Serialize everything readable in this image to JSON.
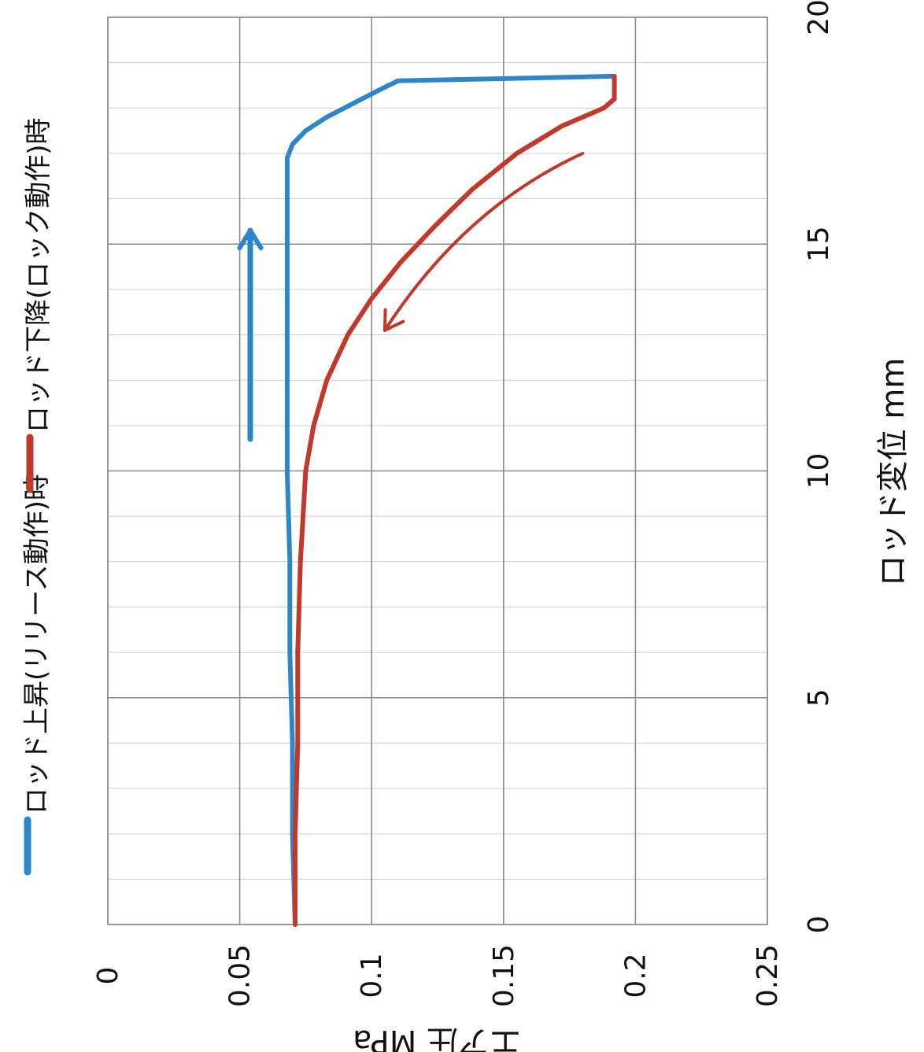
{
  "chart_data": {
    "type": "line",
    "title": "",
    "xlabel": "ロッド変位 mm",
    "ylabel": "エア圧 MPa",
    "xlim": [
      0,
      20
    ],
    "ylim": [
      0,
      0.25
    ],
    "x_ticks": [
      "0",
      "5",
      "10",
      "15",
      "20"
    ],
    "y_ticks": [
      "0",
      "0.05",
      "0.1",
      "0.15",
      "0.2",
      "0.25"
    ],
    "grid": true,
    "legend_position": "top",
    "orientation": "rotated-90-clockwise",
    "series": [
      {
        "name": "ロッド上昇(リリース動作)時",
        "color": "#2e86c9",
        "x": [
          0,
          2,
          4,
          6,
          8,
          10,
          12,
          14,
          16,
          16.5,
          16.9,
          17.2,
          17.5,
          17.8,
          18.1,
          18.4,
          18.6,
          18.7
        ],
        "y": [
          0.071,
          0.07,
          0.07,
          0.069,
          0.069,
          0.068,
          0.068,
          0.068,
          0.068,
          0.068,
          0.068,
          0.07,
          0.075,
          0.083,
          0.093,
          0.103,
          0.11,
          0.192
        ]
      },
      {
        "name": "ロッド下降(ロック動作)時",
        "color": "#c0392b",
        "x": [
          18.7,
          18.2,
          18.0,
          17.6,
          17.0,
          16.2,
          15.4,
          14.6,
          13.8,
          13.0,
          12.0,
          11.0,
          10.0,
          8.0,
          6.0,
          4.0,
          2.0,
          0
        ],
        "y": [
          0.192,
          0.192,
          0.188,
          0.172,
          0.155,
          0.138,
          0.124,
          0.111,
          0.1,
          0.091,
          0.083,
          0.078,
          0.075,
          0.073,
          0.072,
          0.072,
          0.071,
          0.071
        ]
      }
    ],
    "annotations": [
      {
        "type": "arrow",
        "color": "#2e86c9",
        "direction": "increasing-x",
        "from": {
          "x": 10.7,
          "y": 0.054
        },
        "to": {
          "x": 15.3,
          "y": 0.054
        }
      },
      {
        "type": "arrow",
        "color": "#c0392b",
        "direction": "decreasing-x",
        "from": {
          "x": 17.0,
          "y": 0.18
        },
        "to": {
          "x": 13.1,
          "y": 0.105
        }
      }
    ]
  }
}
